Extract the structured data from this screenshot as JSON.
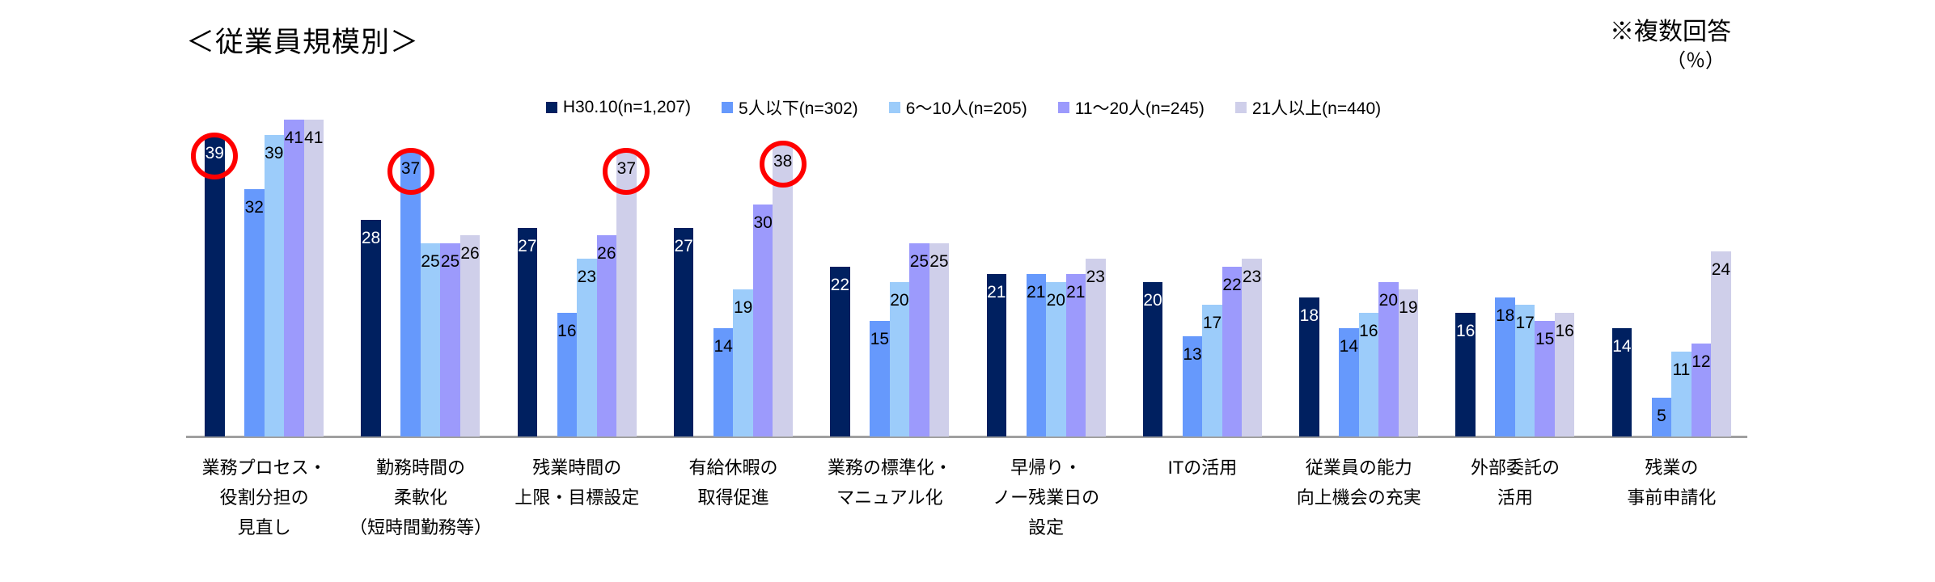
{
  "header": {
    "title": "＜従業員規模別＞",
    "note_line1": "※複数回答",
    "note_line2": "（％）"
  },
  "chart_data": {
    "type": "bar",
    "unit": "%",
    "title": "＜従業員規模別＞",
    "note": "※複数回答（％）",
    "legend_position": "top",
    "grid": false,
    "ylim": [
      0,
      42
    ],
    "axis_color": "#a0a0a0",
    "highlight_color": "#ff0000",
    "categories": [
      [
        "業務プロセス・",
        "役割分担の",
        "見直し"
      ],
      [
        "勤務時間の",
        "柔軟化",
        "（短時間勤務等）"
      ],
      [
        "残業時間の",
        "上限・目標設定"
      ],
      [
        "有給休暇の",
        "取得促進"
      ],
      [
        "業務の標準化・",
        "マニュアル化"
      ],
      [
        "早帰り・",
        "ノー残業日の",
        "設定"
      ],
      [
        "ITの活用"
      ],
      [
        "従業員の能力",
        "向上機会の充実"
      ],
      [
        "外部委託の",
        "活用"
      ],
      [
        "残業の",
        "事前申請化"
      ]
    ],
    "series": [
      {
        "name": "H30.10(n=1,207)",
        "color": "#002060",
        "label_color": "#ffffff",
        "values": [
          39,
          28,
          27,
          27,
          22,
          21,
          20,
          18,
          16,
          14
        ]
      },
      {
        "name": "5人以下(n=302)",
        "color": "#6699fc",
        "label_color": "#000000",
        "values": [
          32,
          37,
          16,
          14,
          15,
          21,
          13,
          14,
          18,
          5
        ]
      },
      {
        "name": "6～10人(n=205)",
        "color": "#9cccfa",
        "label_color": "#000000",
        "values": [
          39,
          25,
          23,
          19,
          20,
          20,
          17,
          16,
          17,
          11
        ]
      },
      {
        "name": "11～20人(n=245)",
        "color": "#9c9afc",
        "label_color": "#000000",
        "values": [
          41,
          25,
          26,
          30,
          25,
          21,
          22,
          20,
          15,
          12
        ]
      },
      {
        "name": "21人以上(n=440)",
        "color": "#cfcfea",
        "label_color": "#000000",
        "values": [
          41,
          26,
          37,
          38,
          25,
          23,
          23,
          19,
          16,
          24
        ]
      }
    ],
    "highlights": [
      {
        "category": 0,
        "series": 0,
        "value": 39
      },
      {
        "category": 1,
        "series": 1,
        "value": 37
      },
      {
        "category": 2,
        "series": 4,
        "value": 37
      },
      {
        "category": 3,
        "series": 4,
        "value": 38
      }
    ]
  }
}
